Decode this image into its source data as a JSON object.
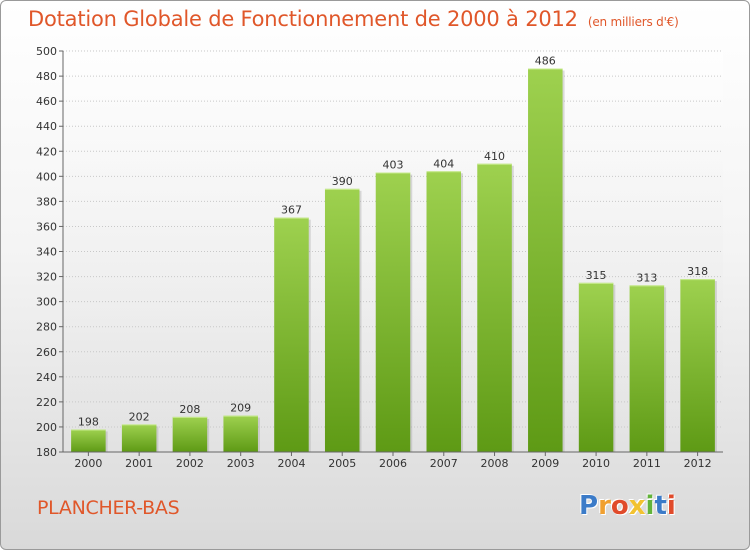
{
  "header": {
    "title": "Dotation Globale de Fonctionnement de 2000 à 2012",
    "unit": "(en milliers d'€)"
  },
  "footer": {
    "place": "PLANCHER-BAS",
    "logo": [
      "P",
      "r",
      "o",
      "x",
      "i",
      "t",
      "i"
    ]
  },
  "colors": {
    "title": "#e0572a",
    "bar_top": "#9ed14f",
    "bar_bottom": "#5e9a15",
    "logo": [
      "#3b7bc8",
      "#f0a030",
      "#e04a2a",
      "#f2c230",
      "#62b33a",
      "#3b7bc8",
      "#e04a2a"
    ]
  },
  "chart_data": {
    "type": "bar",
    "categories": [
      "2000",
      "2001",
      "2002",
      "2003",
      "2004",
      "2005",
      "2006",
      "2007",
      "2008",
      "2009",
      "2010",
      "2011",
      "2012"
    ],
    "values": [
      198,
      202,
      208,
      209,
      367,
      390,
      403,
      404,
      410,
      486,
      315,
      313,
      318
    ],
    "ylim": [
      180,
      500
    ],
    "yticks": [
      180,
      200,
      220,
      240,
      260,
      280,
      300,
      320,
      340,
      360,
      380,
      400,
      420,
      440,
      460,
      480,
      500
    ],
    "grid": true
  }
}
